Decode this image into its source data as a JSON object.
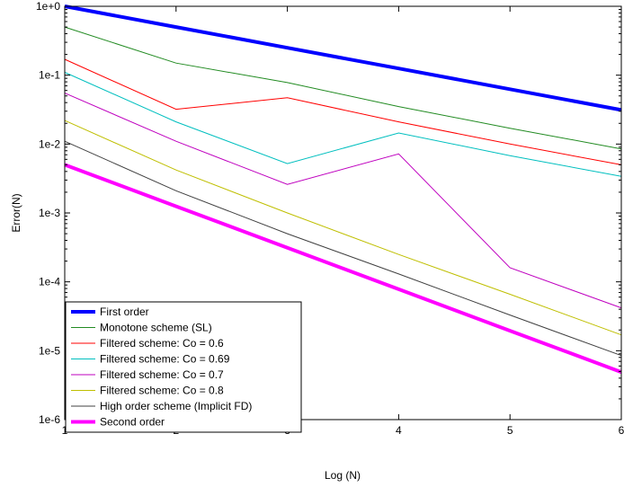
{
  "chart_data": {
    "type": "line",
    "title": "",
    "xlabel": "Log (N)",
    "ylabel": "Error(N)",
    "xlim": [
      1,
      6
    ],
    "ylim": [
      1e-06,
      1
    ],
    "yscale": "log",
    "grid": false,
    "legend_position": "bottom-left",
    "x_ticks": [
      1,
      2,
      3,
      4,
      5,
      6
    ],
    "x_tick_labels": [
      "1",
      "2",
      "3",
      "4",
      "5",
      "6"
    ],
    "y_ticks": [
      1e-06,
      1e-05,
      0.0001,
      0.001,
      0.01,
      0.1,
      1
    ],
    "y_tick_labels": [
      "1e-6",
      "1e-5",
      "1e-4",
      "1e-3",
      "1e-2",
      "1e-1",
      "1e+0"
    ],
    "x": [
      1,
      2,
      3,
      4,
      5,
      6
    ],
    "series": [
      {
        "name": "First order",
        "color": "#0000ff",
        "width": 4,
        "values": [
          1.0,
          0.5,
          0.25,
          0.125,
          0.0625,
          0.03125
        ]
      },
      {
        "name": "Monotone scheme (SL)",
        "color": "#228b22",
        "width": 1,
        "values": [
          0.5,
          0.15,
          0.078,
          0.035,
          0.017,
          0.0085
        ]
      },
      {
        "name": "Filtered scheme: Co = 0.6",
        "color": "#ff0000",
        "width": 1,
        "values": [
          0.17,
          0.032,
          0.047,
          0.021,
          0.01,
          0.005
        ]
      },
      {
        "name": "Filtered scheme: Co = 0.69",
        "color": "#00bfbf",
        "width": 1,
        "values": [
          0.11,
          0.021,
          0.0052,
          0.0145,
          0.0068,
          0.0034
        ]
      },
      {
        "name": "Filtered scheme: Co = 0.7",
        "color": "#bf00bf",
        "width": 1,
        "values": [
          0.055,
          0.011,
          0.0026,
          0.0072,
          0.00016,
          4.2e-05
        ]
      },
      {
        "name": "Filtered scheme: Co = 0.8",
        "color": "#bfbf00",
        "width": 1,
        "values": [
          0.022,
          0.0042,
          0.001,
          0.00025,
          6.6e-05,
          1.7e-05
        ]
      },
      {
        "name": "High order scheme (Implicit FD)",
        "color": "#404040",
        "width": 1,
        "values": [
          0.011,
          0.0021,
          0.0005,
          0.00013,
          3.3e-05,
          8.5e-06
        ]
      },
      {
        "name": "Second order",
        "color": "#ff00ff",
        "width": 4,
        "values": [
          0.005,
          0.00125,
          0.0003125,
          7.8e-05,
          1.95e-05,
          4.9e-06
        ]
      }
    ]
  }
}
